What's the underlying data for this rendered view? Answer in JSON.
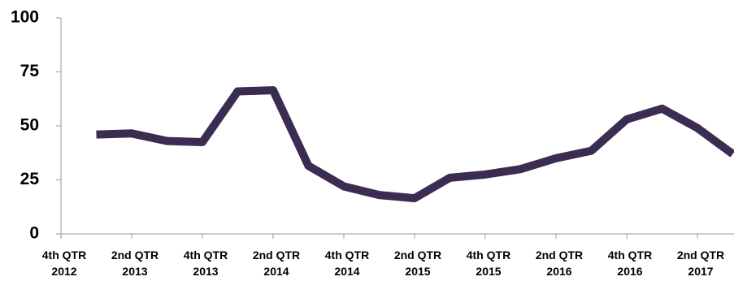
{
  "chart_data": {
    "type": "line",
    "categories": [
      "4th QTR 2012",
      null,
      "2nd QTR 2013",
      null,
      "4th QTR 2013",
      null,
      "2nd QTR 2014",
      null,
      "4th QTR 2014",
      null,
      "2nd QTR 2015",
      null,
      "4th QTR 2015",
      null,
      "2nd QTR 2016",
      null,
      "4th QTR 2016",
      null,
      "2nd QTR 2017",
      null
    ],
    "series": [
      {
        "color": "#3b2c52",
        "values": [
          null,
          46,
          46.5,
          43,
          42.5,
          66,
          66.5,
          31.5,
          22,
          18,
          16.5,
          26,
          27.5,
          30,
          35,
          38.5,
          53,
          58,
          49,
          37
        ]
      }
    ],
    "ylim": [
      0,
      100
    ],
    "yticks": [
      0,
      25,
      50,
      75,
      100
    ],
    "grid": false
  }
}
